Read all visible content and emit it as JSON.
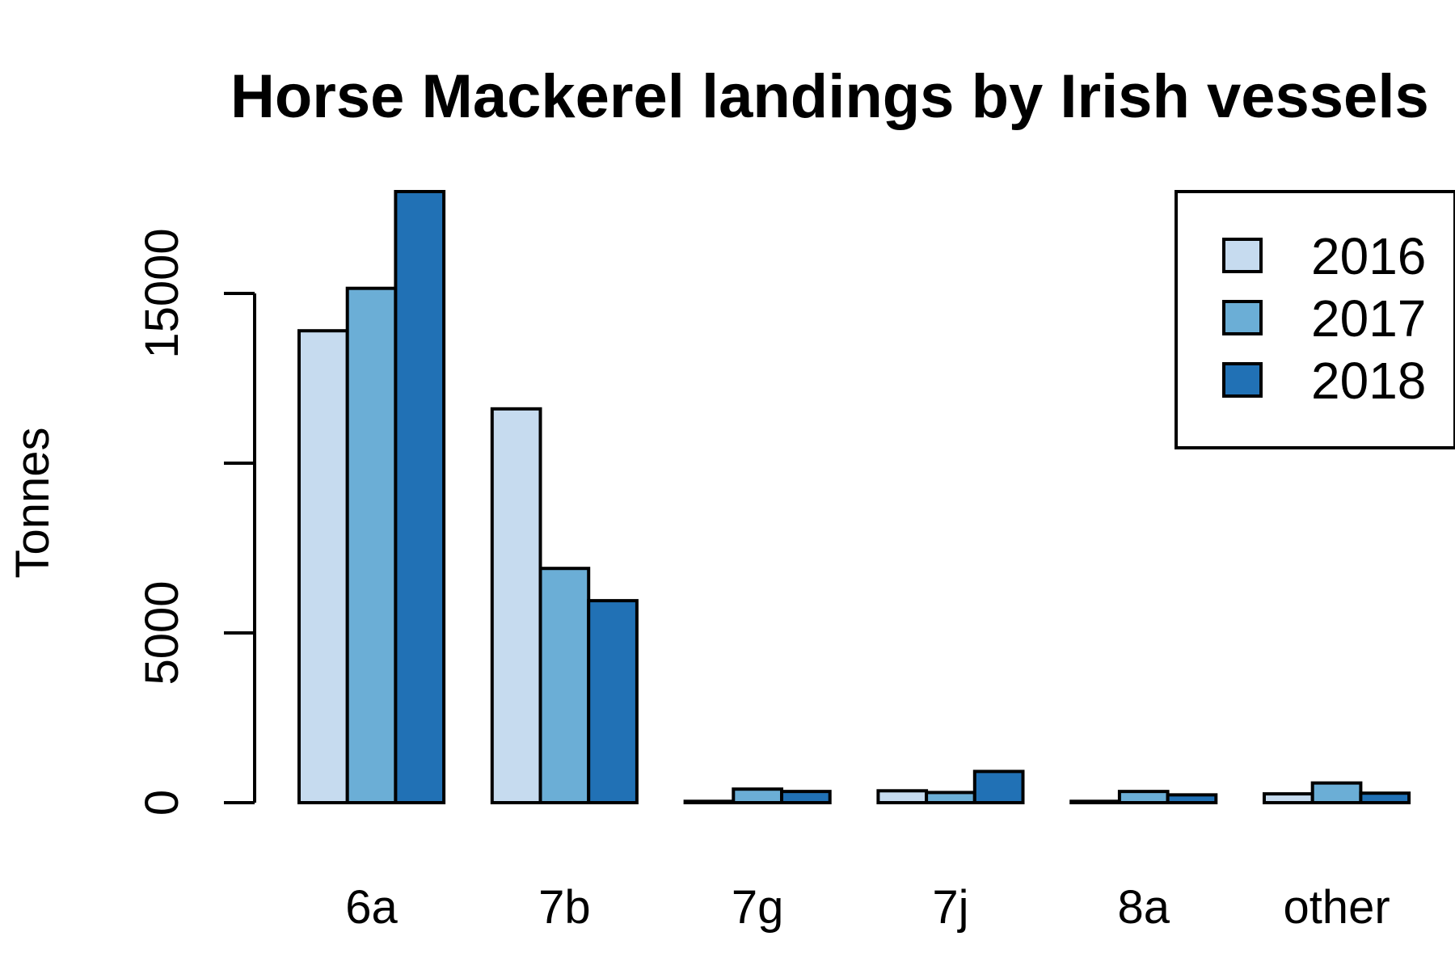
{
  "chart_data": {
    "type": "bar",
    "title": "Horse Mackerel landings by Irish vessels",
    "xlabel": "",
    "ylabel": "Tonnes",
    "categories": [
      "6a",
      "7b",
      "7g",
      "7j",
      "8a",
      "other"
    ],
    "series": [
      {
        "name": "2016",
        "color": "#c6dbef",
        "values": [
          13900,
          11600,
          40,
          350,
          40,
          260
        ]
      },
      {
        "name": "2017",
        "color": "#6baed6",
        "values": [
          15150,
          6900,
          400,
          300,
          330,
          580
        ]
      },
      {
        "name": "2018",
        "color": "#2171b5",
        "values": [
          18000,
          5950,
          330,
          920,
          230,
          280
        ]
      }
    ],
    "yticks": [
      0,
      5000,
      10000,
      15000
    ],
    "ytick_labels": [
      "0",
      "5000",
      "",
      "15000"
    ],
    "ylim": [
      0,
      18000
    ],
    "grid": false,
    "legend_position": "top-right"
  }
}
